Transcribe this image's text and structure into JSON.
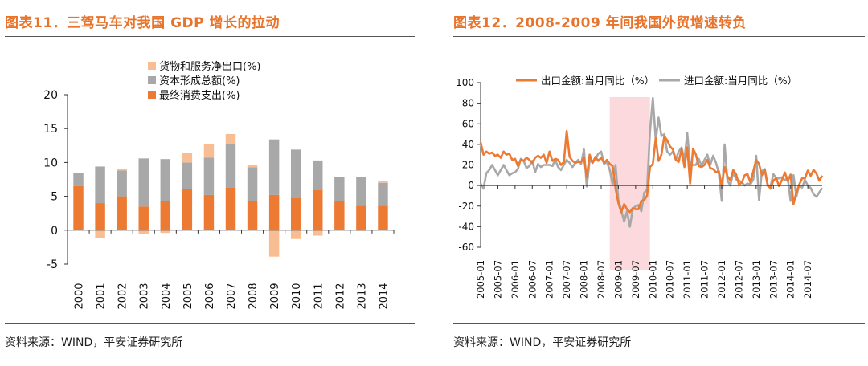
{
  "left": {
    "title": "图表11．三驾马车对我国 GDP 增长的拉动",
    "source": "资料来源：WIND，平安证券研究所"
  },
  "right": {
    "title": "图表12．2008-2009 年间我国外贸增速转负",
    "source": "资料来源：WIND，平安证券研究所"
  },
  "colors": {
    "title": "#e8742b",
    "net_exports": "#f8bd93",
    "capital": "#a8a8a8",
    "consumption": "#ec7a33",
    "export_line": "#ec7a33",
    "import_line": "#a8a8a8",
    "shade": "#fbd9dc"
  },
  "chart_data": [
    {
      "type": "bar",
      "stacked": true,
      "title": "三驾马车对我国 GDP 增长的拉动",
      "categories": [
        "2000",
        "2001",
        "2002",
        "2003",
        "2004",
        "2005",
        "2006",
        "2007",
        "2008",
        "2009",
        "2010",
        "2011",
        "2012",
        "2013",
        "2014"
      ],
      "series": [
        {
          "name": "最终消费支出(%)",
          "values": [
            6.5,
            4.0,
            5.0,
            3.5,
            4.3,
            6.1,
            5.2,
            6.3,
            4.3,
            5.2,
            4.8,
            5.9,
            4.3,
            3.6,
            3.6
          ]
        },
        {
          "name": "资本形成总额(%)",
          "values": [
            2.0,
            5.4,
            3.8,
            7.1,
            6.2,
            3.9,
            5.5,
            6.4,
            5.0,
            8.2,
            7.1,
            4.4,
            3.5,
            4.2,
            3.4
          ]
        },
        {
          "name": "货物和服务净出口(%)",
          "values": [
            0.0,
            -1.1,
            0.3,
            -0.6,
            -0.4,
            1.4,
            2.0,
            1.5,
            0.3,
            -3.9,
            -1.3,
            -0.8,
            0.1,
            -0.1,
            0.3
          ]
        }
      ],
      "legend": [
        "货物和服务净出口(%)",
        "资本形成总额(%)",
        "最终消费支出(%)"
      ],
      "yticks": [
        "20",
        "15",
        "10",
        "5",
        "0",
        "-5"
      ],
      "ylim": [
        -5,
        20
      ]
    },
    {
      "type": "line",
      "title": "2008-2009 年间我国外贸增速转负",
      "x_start": "2005-01",
      "x_end": "2014-12",
      "xticks": [
        "2005-01",
        "2005-07",
        "2006-01",
        "2006-07",
        "2007-01",
        "2007-07",
        "2008-01",
        "2008-07",
        "2009-01",
        "2009-07",
        "2010-01",
        "2010-07",
        "2011-01",
        "2011-07",
        "2012-01",
        "2012-07",
        "2013-01",
        "2013-07",
        "2014-01",
        "2014-07"
      ],
      "yticks": [
        "100",
        "80",
        "60",
        "40",
        "20",
        "0",
        "-20",
        "-40",
        "-60"
      ],
      "ylim": [
        -60,
        100
      ],
      "shaded_range": [
        "2008-10",
        "2009-12"
      ],
      "series": [
        {
          "name": "出口金额:当月同比（%）",
          "values": [
            42,
            30,
            33,
            31,
            32,
            29,
            30,
            27,
            33,
            30,
            31,
            25,
            26,
            19,
            25,
            24,
            27,
            25,
            22,
            27,
            29,
            27,
            30,
            22,
            33,
            24,
            26,
            25,
            20,
            23,
            53,
            28,
            24,
            22,
            23,
            23,
            27,
            8,
            30,
            22,
            28,
            24,
            27,
            22,
            25,
            21,
            19,
            -3,
            -17,
            -26,
            -18,
            -23,
            -26,
            -22,
            -23,
            -23,
            -15,
            -14,
            -10,
            18,
            21,
            46,
            24,
            30,
            48,
            44,
            38,
            35,
            25,
            23,
            35,
            18,
            37,
            2,
            36,
            30,
            19,
            18,
            20,
            25,
            17,
            16,
            13,
            14,
            0,
            18,
            9,
            5,
            15,
            11,
            1,
            3,
            10,
            11,
            3,
            14,
            25,
            21,
            10,
            15,
            1,
            -3,
            5,
            7,
            -0.5,
            5.6,
            12.7,
            4.3,
            10.6,
            -18.1,
            -6.6,
            0.9,
            7.0,
            7.2,
            14.5,
            9.4,
            15.3,
            11.6,
            4.7,
            9.7
          ]
        },
        {
          "name": "进口金额:当月同比（%）",
          "values": [
            2,
            -3,
            12,
            15,
            20,
            15,
            10,
            15,
            20,
            15,
            10,
            12,
            13,
            16,
            26,
            24,
            17,
            19,
            24,
            13,
            21,
            18,
            20,
            20,
            20,
            19,
            25,
            18,
            15,
            20,
            25,
            22,
            18,
            22,
            25,
            21,
            35,
            -1,
            25,
            22,
            26,
            31,
            33,
            21,
            23,
            15,
            1,
            20,
            -14,
            -24,
            -35,
            -25,
            -40,
            -23,
            -20,
            -19,
            -25,
            -7,
            -4,
            52,
            85,
            44,
            66,
            48,
            50,
            33,
            30,
            33,
            25,
            33,
            37,
            25,
            51,
            19,
            20,
            20,
            26,
            19,
            25,
            30,
            20,
            29,
            22,
            12,
            -15,
            40,
            5,
            0,
            13,
            6,
            5,
            3,
            0,
            2,
            1,
            6,
            29,
            -14,
            14,
            16,
            -0.3,
            -0.7,
            11,
            7,
            7,
            8,
            5,
            8,
            -15,
            10,
            -11,
            1,
            -2,
            5.5,
            -0.2,
            -2.4,
            -8.5,
            -11,
            -6.7,
            -2.4
          ]
        }
      ]
    }
  ]
}
